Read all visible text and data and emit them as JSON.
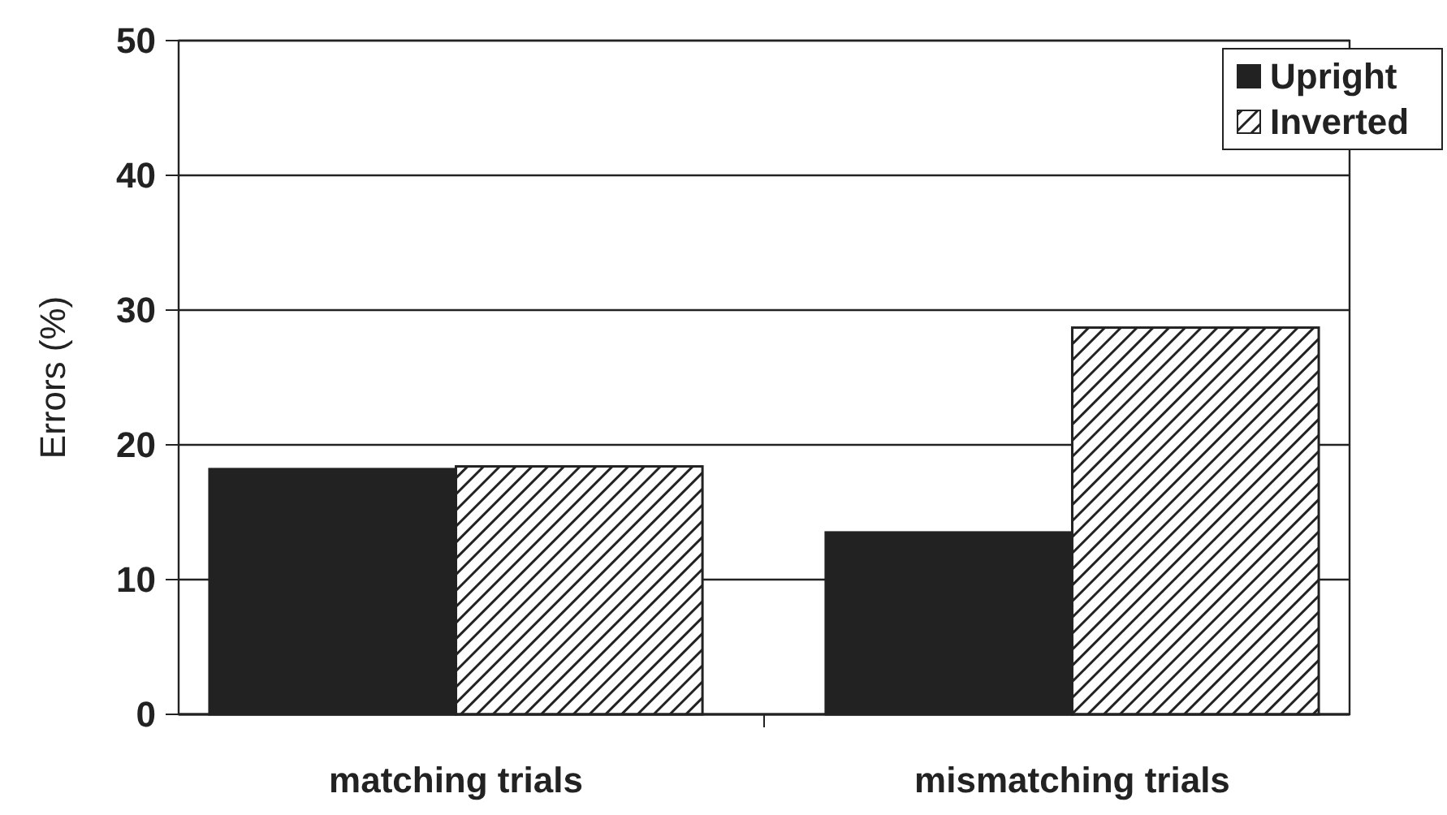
{
  "chart_data": {
    "type": "bar",
    "ylabel": "Errors (%)",
    "categories": [
      "matching trials",
      "mismatching trials"
    ],
    "series": [
      {
        "name": "Upright",
        "color": "#222222",
        "values": [
          18.2,
          13.5
        ]
      },
      {
        "name": "Inverted",
        "color": "#222222",
        "values": [
          18.4,
          28.7
        ]
      }
    ],
    "ylim": [
      0,
      50
    ],
    "yticks": [
      0,
      10,
      20,
      30,
      40,
      50
    ],
    "grid": "y",
    "legend": "top right"
  }
}
